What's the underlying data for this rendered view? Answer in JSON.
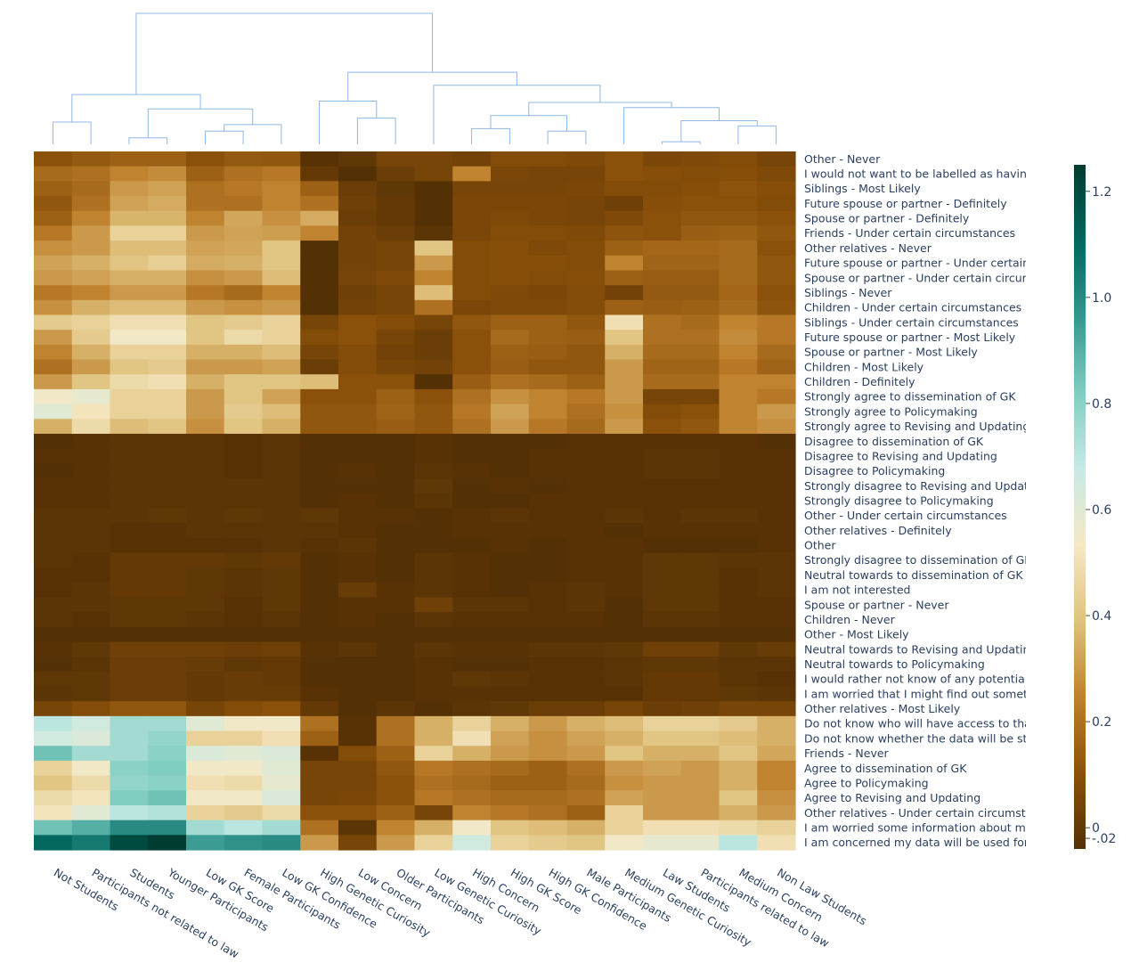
{
  "chart_data": {
    "type": "heatmap",
    "title": "",
    "xlabel": "",
    "ylabel": "",
    "columns": [
      "Not Students",
      "Participants not related to law",
      "Students",
      "Younger Participants",
      "Low GK Score",
      "Female Participants",
      "Low GK Confidence",
      "High Genetic Curiosity",
      "Low Concern",
      "Older Participants",
      "Low Genetic Curiosity",
      "High Concern",
      "High GK Score",
      "High GK Confidence",
      "Male Participants",
      "Medium Genetic Curiosity",
      "Law Students",
      "Participants related to law",
      "Medium Concern",
      "Non Law Students"
    ],
    "rows": [
      "Other - Never",
      "I would not want to be labelled as having",
      "Siblings - Most Likely",
      "Future spouse or partner - Definitely",
      "Spouse or partner - Definitely",
      "Friends - Under certain circumstances",
      "Other relatives - Never",
      "Future spouse or partner - Under certain",
      "Spouse or partner - Under certain circum",
      "Siblings - Never",
      "Children - Under certain circumstances",
      "Siblings - Under certain circumstances",
      "Future spouse or partner - Most Likely",
      "Spouse or partner - Most Likely",
      "Children - Most Likely",
      "Children - Definitely",
      "Strongly agree to dissemination of GK",
      "Strongly agree to Policymaking",
      "Strongly agree to Revising and Updating",
      "Disagree to dissemination of GK",
      "Disagree to Revising and Updating",
      "Disagree to Policymaking",
      "Strongly disagree to Revising and Updatin",
      "Strongly disagree to Policymaking",
      "Other - Under certain circumstances",
      "Other relatives - Definitely",
      "Other",
      "Strongly disagree to dissemination of GK",
      "Neutral towards to dissemination of GK",
      "I am not interested",
      "Spouse or partner - Never",
      "Children - Never",
      "Other - Most Likely",
      "Neutral towards to Revising and Updating",
      "Neutral towards to Policymaking",
      "I would rather not know of any potential",
      "I am worried that I might find out someth",
      "Other relatives - Most Likely",
      "Do not know who will have access to that",
      "Do not know whether the data will be sto",
      "Friends - Never",
      "Agree to dissemination of GK",
      "Agree to Policymaking",
      "Agree to Revising and Updating",
      "Other relatives - Under certain circumsta",
      "I am worried some information about my",
      "I am concerned my data will be used for"
    ],
    "values": [
      [
        0.1,
        0.13,
        0.15,
        0.15,
        0.1,
        0.13,
        0.12,
        -0.03,
        -0.01,
        0.05,
        0.05,
        0.04,
        0.08,
        0.08,
        0.07,
        0.1,
        0.06,
        0.07,
        0.08,
        0.05
      ],
      [
        0.18,
        0.2,
        0.25,
        0.27,
        0.15,
        0.2,
        0.22,
        0.0,
        -0.04,
        0.02,
        0.05,
        0.25,
        0.06,
        0.05,
        0.05,
        0.1,
        0.09,
        0.08,
        0.09,
        0.07
      ],
      [
        0.15,
        0.18,
        0.3,
        0.32,
        0.2,
        0.22,
        0.25,
        0.15,
        0.02,
        -0.01,
        -0.04,
        0.05,
        0.05,
        0.05,
        0.06,
        0.08,
        0.08,
        0.09,
        0.11,
        0.09
      ],
      [
        0.12,
        0.2,
        0.32,
        0.34,
        0.2,
        0.2,
        0.25,
        0.2,
        0.03,
        0.0,
        -0.04,
        0.06,
        0.06,
        0.06,
        0.05,
        0.03,
        0.09,
        0.1,
        0.1,
        0.08
      ],
      [
        0.15,
        0.25,
        0.36,
        0.36,
        0.25,
        0.33,
        0.28,
        0.34,
        0.02,
        0.0,
        -0.04,
        0.06,
        0.07,
        0.06,
        0.05,
        0.07,
        0.1,
        0.12,
        0.12,
        0.1
      ],
      [
        0.22,
        0.3,
        0.45,
        0.45,
        0.3,
        0.32,
        0.31,
        0.25,
        0.04,
        0.02,
        -0.02,
        0.06,
        0.08,
        0.08,
        0.07,
        0.11,
        0.1,
        0.14,
        0.15,
        0.12
      ],
      [
        0.28,
        0.3,
        0.38,
        0.38,
        0.32,
        0.33,
        0.4,
        -0.04,
        0.04,
        0.05,
        0.4,
        0.08,
        0.09,
        0.07,
        0.08,
        0.15,
        0.17,
        0.17,
        0.18,
        0.1
      ],
      [
        0.32,
        0.35,
        0.4,
        0.44,
        0.34,
        0.35,
        0.4,
        -0.04,
        0.04,
        0.05,
        0.3,
        0.08,
        0.09,
        0.09,
        0.08,
        0.25,
        0.16,
        0.16,
        0.18,
        0.12
      ],
      [
        0.3,
        0.32,
        0.35,
        0.35,
        0.28,
        0.3,
        0.38,
        -0.04,
        0.05,
        0.07,
        0.25,
        0.08,
        0.09,
        0.08,
        0.09,
        0.15,
        0.14,
        0.14,
        0.18,
        0.12
      ],
      [
        0.22,
        0.25,
        0.3,
        0.3,
        0.22,
        0.18,
        0.25,
        -0.04,
        0.03,
        0.05,
        0.38,
        0.08,
        0.07,
        0.06,
        0.08,
        0.04,
        0.13,
        0.13,
        0.17,
        0.1
      ],
      [
        0.28,
        0.35,
        0.38,
        0.38,
        0.3,
        0.28,
        0.3,
        -0.04,
        0.04,
        0.05,
        0.2,
        0.06,
        0.07,
        0.07,
        0.08,
        0.15,
        0.14,
        0.15,
        0.18,
        0.11
      ],
      [
        0.42,
        0.45,
        0.5,
        0.5,
        0.4,
        0.42,
        0.45,
        0.05,
        0.1,
        0.08,
        0.05,
        0.12,
        0.15,
        0.15,
        0.12,
        0.5,
        0.2,
        0.18,
        0.25,
        0.22
      ],
      [
        0.3,
        0.42,
        0.55,
        0.55,
        0.4,
        0.48,
        0.45,
        0.08,
        0.1,
        0.05,
        0.02,
        0.1,
        0.18,
        0.15,
        0.14,
        0.4,
        0.2,
        0.2,
        0.27,
        0.22
      ],
      [
        0.25,
        0.35,
        0.45,
        0.45,
        0.35,
        0.35,
        0.38,
        0.05,
        0.08,
        0.04,
        0.02,
        0.1,
        0.15,
        0.14,
        0.12,
        0.35,
        0.18,
        0.18,
        0.25,
        0.18
      ],
      [
        0.2,
        0.3,
        0.4,
        0.42,
        0.3,
        0.3,
        0.32,
        0.02,
        0.08,
        0.05,
        0.04,
        0.1,
        0.14,
        0.12,
        0.12,
        0.3,
        0.16,
        0.16,
        0.22,
        0.16
      ],
      [
        0.3,
        0.4,
        0.48,
        0.5,
        0.35,
        0.4,
        0.4,
        0.38,
        0.1,
        0.1,
        -0.04,
        0.14,
        0.2,
        0.18,
        0.15,
        0.3,
        0.18,
        0.18,
        0.25,
        0.25
      ],
      [
        0.55,
        0.58,
        0.45,
        0.45,
        0.3,
        0.4,
        0.32,
        0.1,
        0.1,
        0.15,
        0.1,
        0.2,
        0.28,
        0.25,
        0.22,
        0.3,
        0.05,
        0.05,
        0.25,
        0.22
      ],
      [
        0.6,
        0.52,
        0.45,
        0.45,
        0.3,
        0.42,
        0.38,
        0.12,
        0.12,
        0.16,
        0.12,
        0.22,
        0.32,
        0.25,
        0.2,
        0.28,
        0.08,
        0.1,
        0.25,
        0.3
      ],
      [
        0.35,
        0.48,
        0.38,
        0.4,
        0.28,
        0.4,
        0.35,
        0.12,
        0.12,
        0.14,
        0.12,
        0.2,
        0.3,
        0.22,
        0.18,
        0.3,
        0.1,
        0.12,
        0.25,
        0.28
      ],
      [
        -0.04,
        -0.03,
        -0.02,
        -0.02,
        -0.02,
        -0.03,
        -0.02,
        -0.04,
        -0.04,
        -0.04,
        -0.03,
        -0.04,
        -0.04,
        -0.04,
        -0.03,
        -0.03,
        -0.03,
        -0.03,
        -0.03,
        -0.04
      ],
      [
        -0.03,
        -0.03,
        -0.02,
        -0.02,
        -0.02,
        -0.03,
        -0.02,
        -0.04,
        -0.04,
        -0.04,
        -0.03,
        -0.04,
        -0.04,
        -0.03,
        -0.03,
        -0.03,
        -0.02,
        -0.02,
        -0.03,
        -0.03
      ],
      [
        -0.04,
        -0.03,
        -0.02,
        -0.02,
        -0.02,
        -0.03,
        -0.02,
        -0.04,
        -0.03,
        -0.04,
        -0.02,
        -0.03,
        -0.04,
        -0.03,
        -0.03,
        -0.03,
        -0.02,
        -0.02,
        -0.03,
        -0.03
      ],
      [
        -0.03,
        -0.03,
        -0.02,
        -0.02,
        -0.02,
        -0.02,
        -0.02,
        -0.04,
        -0.04,
        -0.04,
        -0.01,
        -0.04,
        -0.03,
        -0.04,
        -0.03,
        -0.03,
        -0.03,
        -0.03,
        -0.03,
        -0.03
      ],
      [
        -0.03,
        -0.03,
        -0.02,
        -0.02,
        -0.02,
        -0.02,
        -0.02,
        -0.04,
        -0.03,
        -0.04,
        -0.02,
        -0.04,
        -0.04,
        -0.03,
        -0.03,
        -0.03,
        -0.03,
        -0.03,
        -0.03,
        -0.03
      ],
      [
        -0.02,
        -0.02,
        -0.02,
        -0.01,
        -0.02,
        -0.01,
        -0.02,
        -0.01,
        -0.03,
        -0.03,
        -0.04,
        -0.03,
        -0.02,
        -0.03,
        -0.03,
        -0.02,
        -0.03,
        -0.02,
        -0.02,
        -0.03
      ],
      [
        -0.02,
        -0.02,
        -0.03,
        -0.03,
        -0.02,
        -0.02,
        -0.02,
        -0.02,
        -0.03,
        -0.04,
        -0.04,
        -0.03,
        -0.03,
        -0.03,
        -0.03,
        -0.04,
        -0.03,
        -0.03,
        -0.03,
        -0.03
      ],
      [
        -0.02,
        -0.02,
        -0.03,
        -0.03,
        -0.03,
        -0.03,
        -0.02,
        -0.03,
        -0.02,
        -0.04,
        -0.04,
        -0.04,
        -0.03,
        -0.04,
        -0.03,
        -0.03,
        -0.04,
        -0.04,
        -0.04,
        -0.03
      ],
      [
        -0.02,
        -0.03,
        0.0,
        0.0,
        0.0,
        -0.01,
        0.0,
        -0.04,
        -0.03,
        -0.04,
        -0.02,
        -0.03,
        -0.04,
        -0.04,
        -0.03,
        -0.03,
        -0.01,
        -0.01,
        -0.02,
        -0.02
      ],
      [
        -0.03,
        -0.03,
        0.0,
        0.0,
        -0.01,
        -0.02,
        -0.01,
        -0.04,
        -0.03,
        -0.04,
        -0.02,
        -0.03,
        -0.04,
        -0.04,
        -0.03,
        -0.03,
        -0.01,
        -0.01,
        -0.03,
        -0.02
      ],
      [
        -0.03,
        -0.02,
        0.0,
        0.0,
        -0.01,
        -0.02,
        -0.01,
        -0.04,
        0.01,
        -0.03,
        -0.02,
        -0.03,
        -0.04,
        -0.03,
        -0.02,
        -0.03,
        -0.01,
        -0.01,
        -0.03,
        -0.02
      ],
      [
        -0.02,
        -0.02,
        -0.01,
        -0.01,
        -0.01,
        -0.03,
        -0.01,
        -0.04,
        -0.03,
        -0.03,
        0.03,
        -0.02,
        -0.02,
        -0.03,
        -0.02,
        -0.04,
        -0.01,
        -0.01,
        -0.03,
        -0.03
      ],
      [
        -0.02,
        -0.03,
        -0.01,
        -0.01,
        -0.02,
        -0.03,
        -0.02,
        -0.04,
        -0.03,
        -0.04,
        -0.02,
        -0.03,
        -0.03,
        -0.03,
        -0.03,
        -0.04,
        -0.02,
        -0.02,
        -0.03,
        -0.03
      ],
      [
        -0.04,
        -0.04,
        -0.04,
        -0.04,
        -0.04,
        -0.04,
        -0.04,
        -0.04,
        -0.04,
        -0.04,
        -0.04,
        -0.04,
        -0.04,
        -0.04,
        -0.04,
        -0.04,
        -0.04,
        -0.04,
        -0.04,
        -0.04
      ],
      [
        -0.03,
        -0.01,
        0.03,
        0.03,
        0.03,
        0.02,
        0.03,
        -0.03,
        -0.02,
        -0.04,
        -0.02,
        -0.03,
        -0.03,
        -0.02,
        -0.02,
        -0.01,
        0.03,
        0.03,
        -0.01,
        0.01
      ],
      [
        -0.04,
        -0.02,
        0.02,
        0.02,
        0.01,
        -0.01,
        0.0,
        -0.04,
        -0.04,
        -0.04,
        -0.03,
        -0.04,
        -0.04,
        -0.03,
        -0.03,
        -0.02,
        -0.01,
        -0.01,
        -0.02,
        -0.02
      ],
      [
        -0.01,
        -0.01,
        0.02,
        0.02,
        0.0,
        0.01,
        0.0,
        -0.04,
        -0.04,
        -0.04,
        -0.03,
        -0.01,
        -0.02,
        -0.03,
        -0.03,
        -0.02,
        0.0,
        0.0,
        -0.02,
        -0.03
      ],
      [
        -0.02,
        -0.01,
        0.02,
        0.02,
        0.0,
        0.01,
        0.01,
        -0.03,
        -0.04,
        -0.04,
        -0.03,
        -0.03,
        -0.03,
        -0.03,
        -0.03,
        -0.03,
        0.0,
        0.0,
        -0.01,
        -0.02
      ],
      [
        0.05,
        0.08,
        0.12,
        0.12,
        0.05,
        0.08,
        0.1,
        0.0,
        -0.04,
        -0.02,
        -0.04,
        -0.02,
        -0.01,
        0.02,
        0.02,
        0.05,
        0.02,
        0.03,
        0.05,
        0.05
      ],
      [
        0.7,
        0.65,
        0.75,
        0.75,
        0.6,
        0.55,
        0.55,
        0.2,
        -0.03,
        0.2,
        0.35,
        0.45,
        0.35,
        0.3,
        0.35,
        0.38,
        0.45,
        0.45,
        0.42,
        0.35
      ],
      [
        0.65,
        0.62,
        0.75,
        0.78,
        0.45,
        0.45,
        0.5,
        0.15,
        -0.03,
        0.2,
        0.35,
        0.5,
        0.32,
        0.28,
        0.32,
        0.35,
        0.4,
        0.4,
        0.38,
        0.35
      ],
      [
        0.85,
        0.75,
        0.75,
        0.8,
        0.62,
        0.6,
        0.62,
        -0.03,
        0.08,
        0.15,
        0.45,
        0.35,
        0.3,
        0.28,
        0.3,
        0.4,
        0.35,
        0.35,
        0.4,
        0.33
      ],
      [
        0.45,
        0.55,
        0.8,
        0.82,
        0.55,
        0.55,
        0.6,
        0.05,
        0.05,
        0.12,
        0.22,
        0.2,
        0.18,
        0.15,
        0.2,
        0.3,
        0.32,
        0.3,
        0.35,
        0.25
      ],
      [
        0.4,
        0.48,
        0.78,
        0.8,
        0.5,
        0.48,
        0.58,
        0.05,
        0.05,
        0.1,
        0.2,
        0.18,
        0.15,
        0.15,
        0.18,
        0.28,
        0.3,
        0.3,
        0.35,
        0.25
      ],
      [
        0.48,
        0.52,
        0.82,
        0.85,
        0.55,
        0.55,
        0.62,
        0.05,
        0.06,
        0.1,
        0.22,
        0.2,
        0.18,
        0.18,
        0.2,
        0.32,
        0.3,
        0.3,
        0.4,
        0.28
      ],
      [
        0.52,
        0.6,
        0.7,
        0.72,
        0.45,
        0.42,
        0.48,
        0.1,
        0.1,
        0.15,
        0.05,
        0.25,
        0.22,
        0.2,
        0.15,
        0.45,
        0.3,
        0.3,
        0.35,
        0.3
      ],
      [
        0.85,
        0.9,
        1.0,
        1.0,
        0.75,
        0.7,
        0.75,
        0.2,
        -0.02,
        0.25,
        0.35,
        0.55,
        0.4,
        0.38,
        0.35,
        0.45,
        0.5,
        0.5,
        0.48,
        0.45
      ],
      [
        1.1,
        1.05,
        1.2,
        1.25,
        0.95,
        0.98,
        1.0,
        0.3,
        0.05,
        0.3,
        0.45,
        0.65,
        0.45,
        0.42,
        0.4,
        0.55,
        0.58,
        0.58,
        0.7,
        0.5
      ]
    ],
    "zrange": [
      -0.04,
      1.25
    ],
    "colorscale": [
      "#543005",
      "#8c510a",
      "#bf812d",
      "#dfc27d",
      "#f6e8c3",
      "#c7eae5",
      "#80cdc1",
      "#35978f",
      "#01665e",
      "#003c30"
    ],
    "colorbar_ticks": [
      {
        "value": 1.2,
        "label": "1.2"
      },
      {
        "value": 1.0,
        "label": "1.0"
      },
      {
        "value": 0.8,
        "label": "0.8"
      },
      {
        "value": 0.6,
        "label": "0.6"
      },
      {
        "value": 0.4,
        "label": "0.4"
      },
      {
        "value": 0.2,
        "label": "0.2"
      },
      {
        "value": 0.0,
        "label": "0"
      },
      {
        "value": -0.02,
        "label": "-.02"
      }
    ],
    "dendrogram": {
      "line_color": "#8fb7e3"
    }
  }
}
